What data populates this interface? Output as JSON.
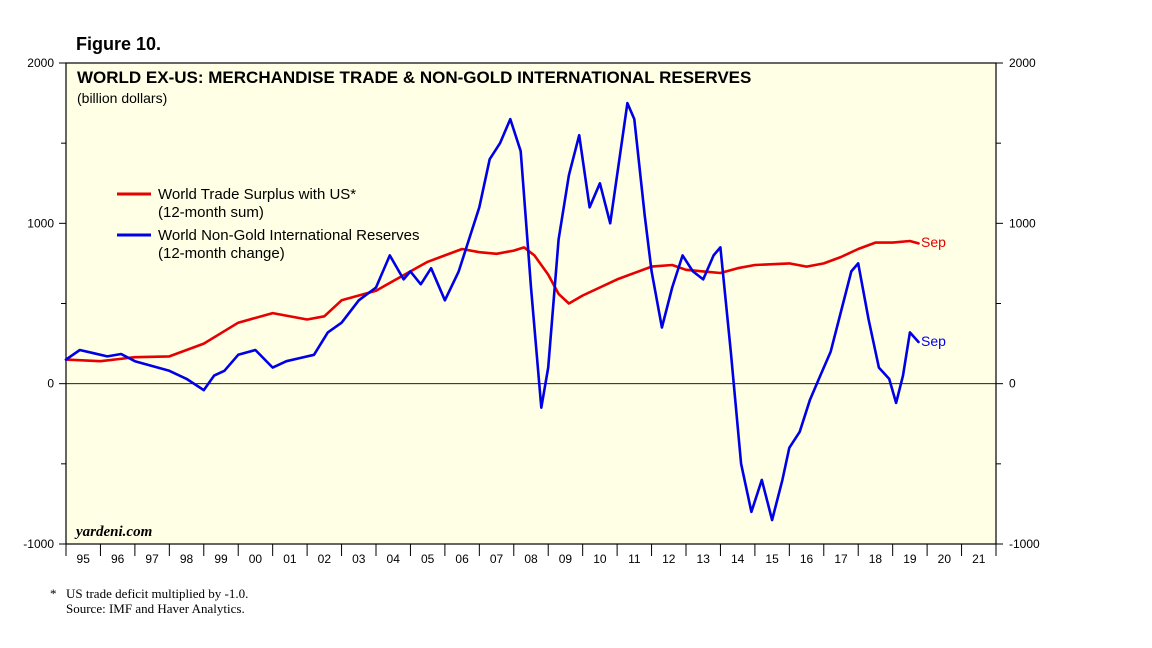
{
  "figure_label": "Figure 10.",
  "footnotes": {
    "star": "*",
    "note": "US trade deficit multiplied by -1.0.",
    "source": "Source: IMF and Haver Analytics."
  },
  "colors": {
    "plot_bg": "#ffffe5",
    "red_series": "#e60000",
    "blue_series": "#0000e6"
  },
  "chart_data": {
    "type": "line",
    "title": "WORLD EX-US: MERCHANDISE TRADE & NON-GOLD INTERNATIONAL RESERVES",
    "subtitle": "(billion dollars)",
    "watermark": "yardeni.com",
    "ylim": [
      -1000,
      2000
    ],
    "xlim": [
      1995.0,
      2022.0
    ],
    "yticks": [
      -1000,
      0,
      1000,
      2000
    ],
    "yticklabels": [
      "-1000",
      "0",
      "1000",
      "2000"
    ],
    "xticklabels": [
      "95",
      "96",
      "97",
      "98",
      "99",
      "00",
      "01",
      "02",
      "03",
      "04",
      "05",
      "06",
      "07",
      "08",
      "09",
      "10",
      "11",
      "12",
      "13",
      "14",
      "15",
      "16",
      "17",
      "18",
      "19",
      "20",
      "21"
    ],
    "legend": [
      {
        "name": "World Trade Surplus with US*",
        "sub": "(12-month sum)",
        "color": "#e60000"
      },
      {
        "name": "World Non-Gold International Reserves",
        "sub": "(12-month change)",
        "color": "#0000e6"
      }
    ],
    "end_labels": {
      "red": "Sep",
      "blue": "Sep"
    },
    "series": [
      {
        "name": "World Trade Surplus with US (12-month sum)",
        "color": "#e60000",
        "x": [
          1995.0,
          1996.0,
          1997.0,
          1998.0,
          1999.0,
          2000.0,
          2001.0,
          2002.0,
          2002.5,
          2003.0,
          2004.0,
          2005.0,
          2005.5,
          2006.0,
          2006.5,
          2007.0,
          2007.5,
          2008.0,
          2008.3,
          2008.6,
          2009.0,
          2009.3,
          2009.6,
          2010.0,
          2011.0,
          2012.0,
          2012.6,
          2013.0,
          2013.5,
          2014.0,
          2014.5,
          2015.0,
          2016.0,
          2016.5,
          2017.0,
          2017.5,
          2018.0,
          2018.5,
          2019.0,
          2019.5,
          2019.75
        ],
        "values": [
          150,
          140,
          165,
          170,
          250,
          380,
          440,
          400,
          420,
          520,
          580,
          700,
          760,
          800,
          840,
          820,
          810,
          830,
          850,
          800,
          680,
          560,
          500,
          550,
          650,
          730,
          740,
          710,
          700,
          690,
          720,
          740,
          750,
          730,
          750,
          790,
          840,
          880,
          880,
          890,
          875
        ]
      },
      {
        "name": "World Non-Gold International Reserves (12-month change)",
        "color": "#0000e6",
        "x": [
          1995.0,
          1995.4,
          1995.8,
          1996.2,
          1996.6,
          1997.0,
          1997.5,
          1998.0,
          1998.5,
          1999.0,
          1999.3,
          1999.6,
          2000.0,
          2000.5,
          2001.0,
          2001.4,
          2001.8,
          2002.2,
          2002.6,
          2003.0,
          2003.5,
          2004.0,
          2004.4,
          2004.8,
          2005.0,
          2005.3,
          2005.6,
          2006.0,
          2006.4,
          2006.7,
          2007.0,
          2007.3,
          2007.6,
          2007.9,
          2008.2,
          2008.5,
          2008.8,
          2009.0,
          2009.3,
          2009.6,
          2009.9,
          2010.2,
          2010.5,
          2010.8,
          2011.0,
          2011.3,
          2011.5,
          2011.8,
          2012.0,
          2012.3,
          2012.6,
          2012.9,
          2013.2,
          2013.5,
          2013.8,
          2014.0,
          2014.3,
          2014.6,
          2014.9,
          2015.2,
          2015.5,
          2015.8,
          2016.0,
          2016.3,
          2016.6,
          2016.9,
          2017.2,
          2017.5,
          2017.8,
          2018.0,
          2018.3,
          2018.6,
          2018.9,
          2019.1,
          2019.3,
          2019.5,
          2019.75
        ],
        "values": [
          150,
          210,
          190,
          170,
          185,
          140,
          110,
          80,
          30,
          -40,
          50,
          80,
          180,
          210,
          100,
          140,
          160,
          180,
          320,
          380,
          520,
          600,
          800,
          650,
          700,
          620,
          720,
          520,
          700,
          900,
          1100,
          1400,
          1500,
          1650,
          1450,
          600,
          -150,
          100,
          900,
          1300,
          1550,
          1100,
          1250,
          1000,
          1300,
          1750,
          1650,
          1050,
          700,
          350,
          600,
          800,
          700,
          650,
          800,
          850,
          200,
          -500,
          -800,
          -600,
          -850,
          -600,
          -400,
          -300,
          -100,
          50,
          200,
          450,
          700,
          750,
          400,
          100,
          30,
          -120,
          50,
          320,
          260
        ]
      }
    ]
  }
}
